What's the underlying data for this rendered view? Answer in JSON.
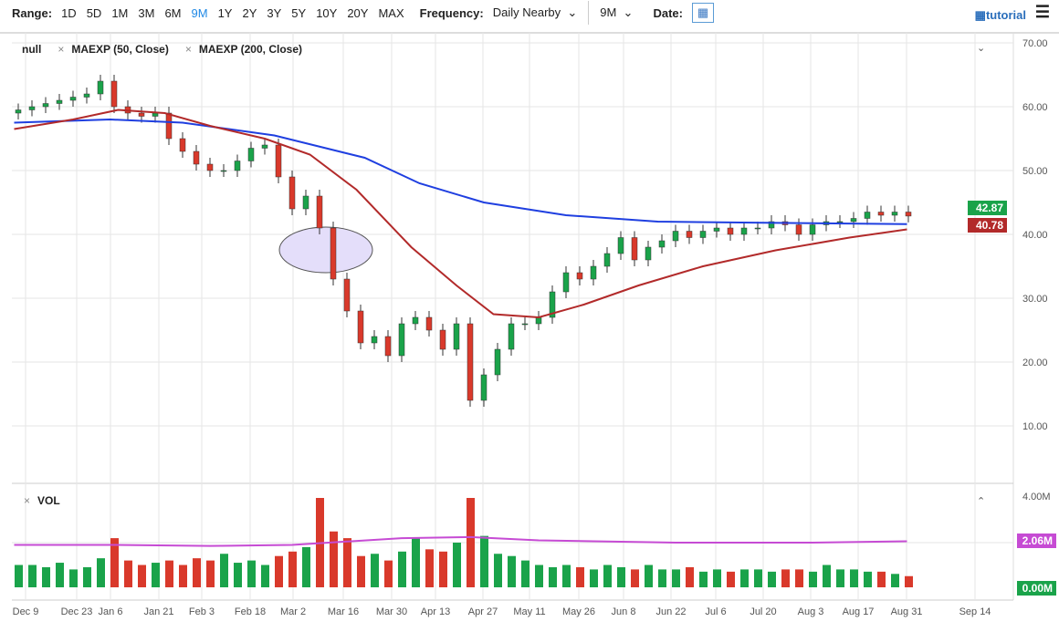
{
  "toolbar": {
    "range_label": "Range:",
    "ranges": [
      "1D",
      "5D",
      "1M",
      "3M",
      "6M",
      "9M",
      "1Y",
      "2Y",
      "3Y",
      "5Y",
      "10Y",
      "20Y",
      "MAX"
    ],
    "selected_range": "9M",
    "frequency_label": "Frequency:",
    "frequency_value": "Daily Nearby",
    "period_value": "9M",
    "date_label": "Date:",
    "tutorial_label": "tutorial"
  },
  "legend": {
    "main": "null",
    "ma1": "MAEXP (50, Close)",
    "ma2": "MAEXP (200, Close)",
    "volume": "VOL"
  },
  "colors": {
    "up": "#1aa34a",
    "down": "#d9392b",
    "ma50": "#b22a2a",
    "ma200": "#1f3fe0",
    "volma": "#c64bd4"
  },
  "chart_data": {
    "type": "candlestick",
    "y_ticks": [
      "70.00",
      "60.00",
      "50.00",
      "40.00",
      "30.00",
      "20.00",
      "10.00"
    ],
    "ylim": [
      5,
      71
    ],
    "x_ticks": [
      "Dec 9",
      "Dec 23",
      "Jan 6",
      "Jan 21",
      "Feb 3",
      "Feb 18",
      "Mar 2",
      "Mar 16",
      "Mar 30",
      "Apr 13",
      "Apr 27",
      "May 11",
      "May 26",
      "Jun 8",
      "Jun 22",
      "Jul 6",
      "Jul 20",
      "Aug 3",
      "Aug 17",
      "Aug 31",
      "Sep 14"
    ],
    "closes": [
      59.5,
      60,
      60.5,
      61,
      61.5,
      62,
      64,
      60,
      59,
      58.5,
      59,
      55,
      53,
      51,
      50,
      50,
      51.5,
      53.5,
      54,
      49,
      44,
      46,
      41,
      33,
      28,
      23,
      24,
      21,
      26,
      27,
      25,
      22,
      26,
      14,
      18,
      22,
      26,
      26,
      27,
      31,
      34,
      33,
      35,
      37,
      39.5,
      36,
      38,
      39,
      40.5,
      39.5,
      40.5,
      41,
      40,
      41,
      41,
      42,
      41.5,
      40,
      41.5,
      42,
      42,
      42.5,
      43.5,
      43,
      43.5,
      42.87
    ],
    "volume_m": [
      1.0,
      1.0,
      0.9,
      1.1,
      0.8,
      0.9,
      1.3,
      2.2,
      1.2,
      1.0,
      1.1,
      1.2,
      1.0,
      1.3,
      1.2,
      1.5,
      1.1,
      1.2,
      1.0,
      1.4,
      1.6,
      1.8,
      4.0,
      2.5,
      2.2,
      1.4,
      1.5,
      1.2,
      1.6,
      2.2,
      1.7,
      1.6,
      2.0,
      4.0,
      2.3,
      1.5,
      1.4,
      1.2,
      1.0,
      0.9,
      1.0,
      0.9,
      0.8,
      1.0,
      0.9,
      0.8,
      1.0,
      0.8,
      0.8,
      0.9,
      0.7,
      0.8,
      0.7,
      0.8,
      0.8,
      0.7,
      0.8,
      0.8,
      0.7,
      1.0,
      0.8,
      0.8,
      0.7,
      0.7,
      0.6,
      0.5
    ],
    "ma50": [
      [
        -0.3,
        56.5
      ],
      [
        4,
        58
      ],
      [
        7.3,
        59.5
      ],
      [
        10.7,
        59
      ],
      [
        14,
        57
      ],
      [
        18,
        55
      ],
      [
        21.3,
        52.5
      ],
      [
        24.7,
        47
      ],
      [
        28.7,
        38
      ],
      [
        32,
        32
      ],
      [
        34.7,
        27.5
      ],
      [
        38,
        27
      ],
      [
        41.3,
        29
      ],
      [
        45.3,
        32
      ],
      [
        50,
        35
      ],
      [
        55.3,
        37.5
      ],
      [
        60.7,
        39.5
      ],
      [
        64.9,
        40.78
      ]
    ],
    "ma200": [
      [
        -0.3,
        57.5
      ],
      [
        6.7,
        58
      ],
      [
        12,
        57.5
      ],
      [
        18.7,
        55.5
      ],
      [
        25.3,
        52
      ],
      [
        29.3,
        48
      ],
      [
        34,
        45
      ],
      [
        40,
        43
      ],
      [
        46.7,
        42
      ],
      [
        55.3,
        41.8
      ],
      [
        64.9,
        41.6
      ]
    ],
    "vol_ma": [
      [
        -0.3,
        1.9
      ],
      [
        7,
        1.9
      ],
      [
        14,
        1.85
      ],
      [
        20,
        1.9
      ],
      [
        28,
        2.2
      ],
      [
        33,
        2.25
      ],
      [
        38,
        2.1
      ],
      [
        48,
        2.0
      ],
      [
        58,
        2.0
      ],
      [
        64.9,
        2.06
      ]
    ],
    "vol_ticks": [
      "4.00M",
      "2.06M",
      "0.00M"
    ],
    "last_price": "42.87",
    "ma50_last": "40.78",
    "annotation": "ellipse"
  }
}
